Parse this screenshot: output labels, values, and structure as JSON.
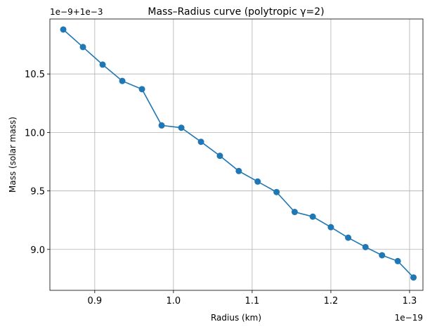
{
  "chart_data": {
    "type": "line",
    "title": "Mass–Radius curve (polytropic γ=2)",
    "xlabel": "Radius (km)",
    "ylabel": "Mass (solar mass)",
    "x_offset_label": "1e−19",
    "y_offset_label": "1e−9+1e−3",
    "xlim": [
      0.843,
      1.317
    ],
    "ylim": [
      8.65,
      10.97
    ],
    "x_ticks": [
      0.9,
      1.0,
      1.1,
      1.2,
      1.3
    ],
    "x_tick_labels": [
      "0.9",
      "1.0",
      "1.1",
      "1.2",
      "1.3"
    ],
    "y_ticks": [
      9.0,
      9.5,
      10.0,
      10.5
    ],
    "y_tick_labels": [
      "9.0",
      "9.5",
      "10.0",
      "10.5"
    ],
    "grid": true,
    "series_color": "#1f77b4",
    "marker": "circle",
    "x": [
      0.86,
      0.885,
      0.91,
      0.935,
      0.96,
      0.985,
      1.01,
      1.035,
      1.059,
      1.083,
      1.107,
      1.131,
      1.154,
      1.177,
      1.2,
      1.222,
      1.244,
      1.265,
      1.285,
      1.305
    ],
    "y": [
      10.88,
      10.73,
      10.58,
      10.44,
      10.37,
      10.06,
      10.04,
      9.92,
      9.8,
      9.67,
      9.58,
      9.49,
      9.32,
      9.28,
      9.19,
      9.1,
      9.02,
      8.95,
      8.9,
      8.76
    ]
  }
}
